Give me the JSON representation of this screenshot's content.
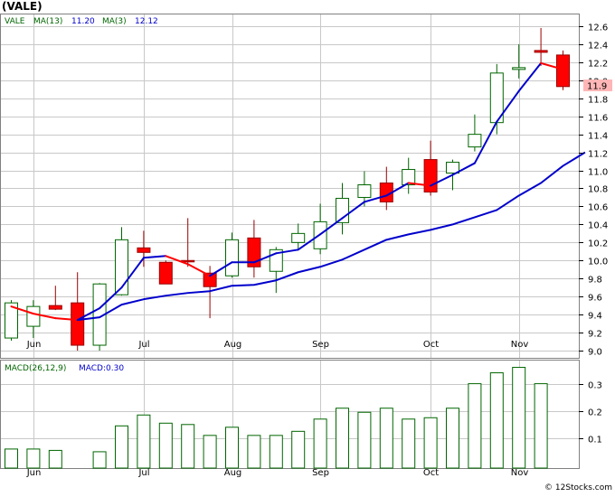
{
  "title": "(VALE)",
  "watermark": "© 12Stocks.com",
  "price_panel": {
    "legend": {
      "symbol": "VALE",
      "ma_long_label": "MA(13)",
      "ma_long_value": "11.20",
      "ma_short_label": "MA(3)",
      "ma_short_value": "12.12"
    },
    "last_price_label": "11.9"
  },
  "macd_panel": {
    "legend": {
      "params_label": "MACD(26,12,9)",
      "value_label": "MACD:0.30"
    }
  },
  "colors": {
    "up_candle": "#006600",
    "down_candle": "#ff0000",
    "ma_short": "#ff0000",
    "ma_long": "#0000cc",
    "macd_bar": "#006600",
    "grid": "#c8c8c8",
    "frame": "#808080",
    "legend_text": "#006600",
    "legend_value": "#0000cc",
    "last_price_bg": "#ffb6b6"
  },
  "chart_data": [
    {
      "type": "candlestick",
      "title": "(VALE)",
      "ylim": [
        8.92,
        12.73
      ],
      "y_ticks": [
        "9.0",
        "9.2",
        "9.4",
        "9.6",
        "9.8",
        "10.0",
        "10.2",
        "10.4",
        "10.6",
        "10.8",
        "11.0",
        "11.2",
        "11.4",
        "11.6",
        "11.8",
        "12.0",
        "12.2",
        "12.4",
        "12.6"
      ],
      "x_month_labels": [
        {
          "label": "Jun",
          "week": 1
        },
        {
          "label": "Jul",
          "week": 6
        },
        {
          "label": "Aug",
          "week": 10
        },
        {
          "label": "Sep",
          "week": 14
        },
        {
          "label": "Oct",
          "week": 19
        },
        {
          "label": "Nov",
          "week": 23
        }
      ],
      "weeks": [
        {
          "o": 9.14,
          "h": 9.56,
          "l": 9.11,
          "c": 9.53
        },
        {
          "o": 9.27,
          "h": 9.56,
          "l": 9.14,
          "c": 9.49
        },
        {
          "o": 9.5,
          "h": 9.72,
          "l": 9.45,
          "c": 9.46
        },
        {
          "o": 9.53,
          "h": 9.87,
          "l": 9.0,
          "c": 9.06
        },
        {
          "o": 9.06,
          "h": 9.75,
          "l": 9.0,
          "c": 9.74
        },
        {
          "o": 9.62,
          "h": 10.37,
          "l": 9.61,
          "c": 10.23
        },
        {
          "o": 10.14,
          "h": 10.33,
          "l": 9.93,
          "c": 10.09
        },
        {
          "o": 9.98,
          "h": 10.0,
          "l": 9.74,
          "c": 9.74
        },
        {
          "o": 10.0,
          "h": 10.47,
          "l": 9.93,
          "c": 9.99
        },
        {
          "o": 9.86,
          "h": 9.94,
          "l": 9.36,
          "c": 9.71
        },
        {
          "o": 9.83,
          "h": 10.31,
          "l": 9.81,
          "c": 10.23
        },
        {
          "o": 10.25,
          "h": 10.45,
          "l": 9.81,
          "c": 9.93
        },
        {
          "o": 9.88,
          "h": 10.15,
          "l": 9.64,
          "c": 10.12
        },
        {
          "o": 10.2,
          "h": 10.41,
          "l": 10.12,
          "c": 10.3
        },
        {
          "o": 10.13,
          "h": 10.63,
          "l": 10.07,
          "c": 10.43
        },
        {
          "o": 10.42,
          "h": 10.86,
          "l": 10.29,
          "c": 10.69
        },
        {
          "o": 10.7,
          "h": 10.99,
          "l": 10.6,
          "c": 10.84
        },
        {
          "o": 10.86,
          "h": 11.04,
          "l": 10.56,
          "c": 10.65
        },
        {
          "o": 10.84,
          "h": 11.14,
          "l": 10.74,
          "c": 11.01
        },
        {
          "o": 11.12,
          "h": 11.33,
          "l": 10.72,
          "c": 10.76
        },
        {
          "o": 10.97,
          "h": 11.12,
          "l": 10.78,
          "c": 11.09
        },
        {
          "o": 11.26,
          "h": 11.62,
          "l": 11.21,
          "c": 11.4
        },
        {
          "o": 11.53,
          "h": 12.18,
          "l": 11.4,
          "c": 12.08
        },
        {
          "o": 12.12,
          "h": 12.4,
          "l": 12.02,
          "c": 12.14
        },
        {
          "o": 12.33,
          "h": 12.58,
          "l": 12.16,
          "c": 12.31
        },
        {
          "o": 12.28,
          "h": 12.33,
          "l": 11.89,
          "c": 11.93
        }
      ],
      "series": [
        {
          "name": "MA(3)",
          "start_week": 0,
          "values": [
            9.49,
            9.41,
            9.36,
            9.34,
            9.47,
            9.7,
            10.03,
            10.05,
            9.96,
            9.83,
            9.98,
            9.98,
            10.08,
            10.12,
            10.29,
            10.47,
            10.65,
            10.72,
            10.86,
            10.83,
            10.95,
            11.08,
            11.54,
            11.88,
            12.19,
            12.12
          ]
        },
        {
          "name": "MA(13)",
          "start_week": 3,
          "values": [
            9.34,
            9.37,
            9.51,
            9.57,
            9.61,
            9.64,
            9.66,
            9.72,
            9.73,
            9.78,
            9.87,
            9.93,
            10.01,
            10.12,
            10.23,
            10.29,
            10.34,
            10.4,
            10.48,
            10.56,
            10.72,
            10.86,
            11.05,
            11.2
          ]
        }
      ]
    },
    {
      "type": "bar",
      "title": "MACD(26,12,9)",
      "ylim": [
        -0.01,
        0.385
      ],
      "y_ticks": [
        "0.1",
        "0.2",
        "0.3"
      ],
      "x_month_labels": [
        {
          "label": "Jun",
          "week": 1
        },
        {
          "label": "Jul",
          "week": 6
        },
        {
          "label": "Aug",
          "week": 10
        },
        {
          "label": "Sep",
          "week": 14
        },
        {
          "label": "Oct",
          "week": 19
        },
        {
          "label": "Nov",
          "week": 23
        }
      ],
      "values": [
        0.06,
        0.06,
        0.055,
        0,
        0.05,
        0.145,
        0.185,
        0.155,
        0.15,
        0.11,
        0.14,
        0.11,
        0.11,
        0.125,
        0.17,
        0.21,
        0.195,
        0.21,
        0.17,
        0.175,
        0.21,
        0.3,
        0.34,
        0.36,
        0.3
      ]
    }
  ]
}
